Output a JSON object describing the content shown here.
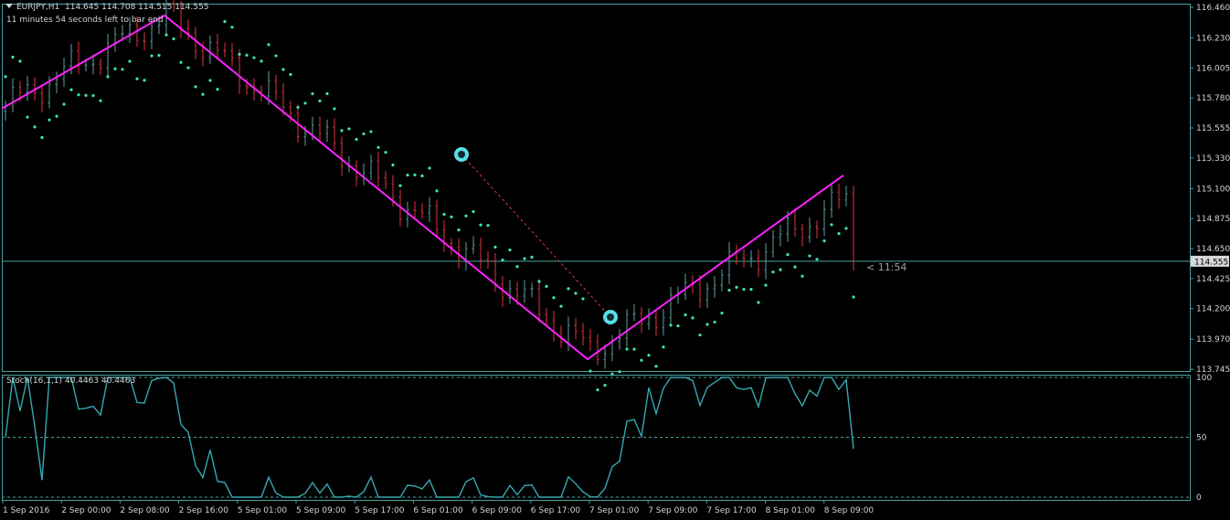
{
  "header": {
    "symbol": "EURJPY,H1",
    "ohlc": "114.645 114.708 114.515 114.555",
    "timer_text": "11 minutes 54 seconds left to bar end"
  },
  "countdown_label": "< 11:54",
  "current_price_label": "114.555",
  "stoch_label": "Stoch(16,1,1) 40.4463 40.4463",
  "colors": {
    "background": "#000000",
    "frame": "#4aa0a0",
    "bull_candle": "#5f9ea0",
    "bear_candle": "#e0363c",
    "zigzag": "#ff22ff",
    "sar": "#3fe6b0",
    "stoch": "#36a8b0",
    "text": "#cfd6d6"
  },
  "icons": [
    "arrow-marker-icon",
    "arrow-marker-icon"
  ],
  "chart_data": {
    "type": "candlestick",
    "symbol": "EURJPY",
    "timeframe": "H1",
    "price_axis_ticks": [
      "116.460",
      "116.230",
      "116.005",
      "115.780",
      "115.555",
      "115.330",
      "115.100",
      "114.875",
      "114.650",
      "114.425",
      "114.200",
      "113.970",
      "113.745"
    ],
    "price_range": [
      113.745,
      116.46
    ],
    "current_price": 114.555,
    "time_axis_labels": [
      "1 Sep 2016",
      "2 Sep 00:00",
      "2 Sep 08:00",
      "2 Sep 16:00",
      "5 Sep 01:00",
      "5 Sep 09:00",
      "5 Sep 17:00",
      "6 Sep 01:00",
      "6 Sep 09:00",
      "6 Sep 17:00",
      "7 Sep 01:00",
      "7 Sep 09:00",
      "7 Sep 17:00",
      "8 Sep 01:00",
      "8 Sep 09:00"
    ],
    "zigzag": [
      115.7,
      116.4,
      113.82,
      115.2
    ],
    "stoch_axis_ticks": [
      "100",
      "50",
      "0"
    ],
    "stoch_levels": [
      100,
      50,
      0
    ],
    "stoch_range": [
      0,
      100
    ]
  }
}
